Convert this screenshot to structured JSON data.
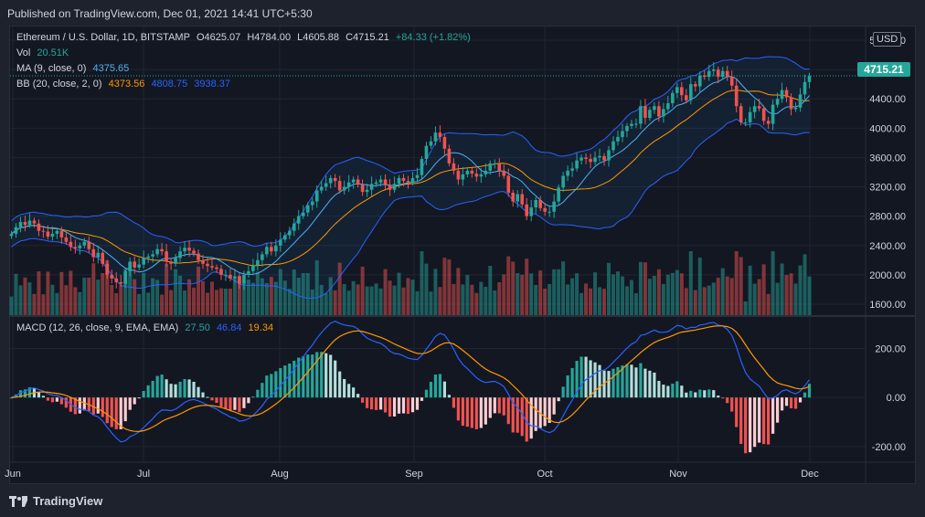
{
  "header": {
    "published": "Published on TradingView.com, Dec 01, 2021 14:41 UTC+5:30"
  },
  "legend": {
    "symbol": "Ethereum / U.S. Dollar, 1D, BITSTAMP",
    "open": "O4625.07",
    "high": "H4784.00",
    "low": "L4605.88",
    "close": "C4715.21",
    "change": "+84.33 (+1.82%)",
    "vol_label": "Vol",
    "vol_value": "20.51K",
    "ma_label": "MA (9, close, 0)",
    "ma_value": "4375.65",
    "bb_label": "BB (20, close, 2, 0)",
    "bb_basis": "4373.56",
    "bb_upper": "4808.75",
    "bb_lower": "3938.37",
    "macd_label": "MACD (12, 26, close, 9, EMA, EMA)",
    "macd_hist": "27.50",
    "macd_line": "46.84",
    "macd_signal": "19.34"
  },
  "currency_button": "USD",
  "last_price": "4715.21",
  "footer": {
    "brand": "TradingView"
  },
  "colors": {
    "up": "#26a69a",
    "down": "#ef5350",
    "bb": "#2962ff",
    "ma": "#ff9800",
    "macd": "#2962ff",
    "signal": "#ff9800"
  },
  "chart_data": [
    {
      "type": "candlestick",
      "title": "Ethereum / U.S. Dollar, 1D, BITSTAMP",
      "x_ticks": [
        "Jun",
        "Jul",
        "Aug",
        "Sep",
        "Oct",
        "Nov",
        "Dec"
      ],
      "y_ticks": [
        "1600.00",
        "2000.00",
        "2400.00",
        "2800.00",
        "3200.00",
        "3600.00",
        "4000.00",
        "4400.00",
        "4800.00",
        "5200.00"
      ],
      "ylim": [
        1450,
        5250
      ],
      "close": [
        2560,
        2650,
        2720,
        2680,
        2740,
        2700,
        2600,
        2590,
        2520,
        2560,
        2600,
        2510,
        2450,
        2380,
        2360,
        2400,
        2450,
        2350,
        2240,
        2300,
        2150,
        2000,
        1950,
        1900,
        1880,
        2050,
        2180,
        2100,
        2140,
        2230,
        2250,
        2280,
        2350,
        2320,
        2180,
        2150,
        2230,
        2320,
        2370,
        2330,
        2290,
        2200,
        2150,
        2120,
        2100,
        2080,
        2000,
        2000,
        1950,
        1980,
        1880,
        2000,
        2050,
        2130,
        2200,
        2280,
        2380,
        2320,
        2400,
        2480,
        2540,
        2600,
        2700,
        2800,
        2850,
        2950,
        3000,
        3150,
        3200,
        3250,
        3320,
        3280,
        3150,
        3200,
        3260,
        3300,
        3230,
        3130,
        3160,
        3240,
        3260,
        3300,
        3220,
        3160,
        3240,
        3320,
        3280,
        3260,
        3320,
        3360,
        3580,
        3760,
        3820,
        3940,
        3880,
        3720,
        3520,
        3420,
        3300,
        3370,
        3420,
        3380,
        3340,
        3370,
        3420,
        3520,
        3520,
        3420,
        3350,
        3120,
        3000,
        3100,
        2960,
        2800,
        2920,
        3020,
        2910,
        2860,
        2860,
        3000,
        3190,
        3350,
        3420,
        3450,
        3560,
        3600,
        3580,
        3540,
        3600,
        3620,
        3560,
        3700,
        3820,
        3880,
        3960,
        4030,
        4060,
        4060,
        4300,
        4140,
        4250,
        4300,
        4160,
        4260,
        4340,
        4480,
        4560,
        4450,
        4380,
        4600,
        4570,
        4720,
        4700,
        4780,
        4800,
        4700,
        4780,
        4700,
        4580,
        4300,
        4080,
        4080,
        4220,
        4300,
        4270,
        4100,
        4060,
        4320,
        4400,
        4520,
        4420,
        4260,
        4280,
        4460,
        4630,
        4715
      ],
      "ma": {
        "name": "MA (9, close, 0)",
        "last": 4375.65
      },
      "bb": {
        "name": "BB (20, close, 2, 0)",
        "basis": 4373.56,
        "upper": 4808.75,
        "lower": 3938.37
      },
      "volume": {
        "name": "Vol",
        "last": "20.51K"
      }
    },
    {
      "type": "macd",
      "title": "MACD (12, 26, close, 9, EMA, EMA)",
      "y_ticks": [
        "200.00",
        "0.00",
        "-200.00"
      ],
      "ylim": [
        -260,
        280
      ],
      "last": {
        "histogram": 27.5,
        "macd": 46.84,
        "signal": 19.34
      }
    }
  ]
}
